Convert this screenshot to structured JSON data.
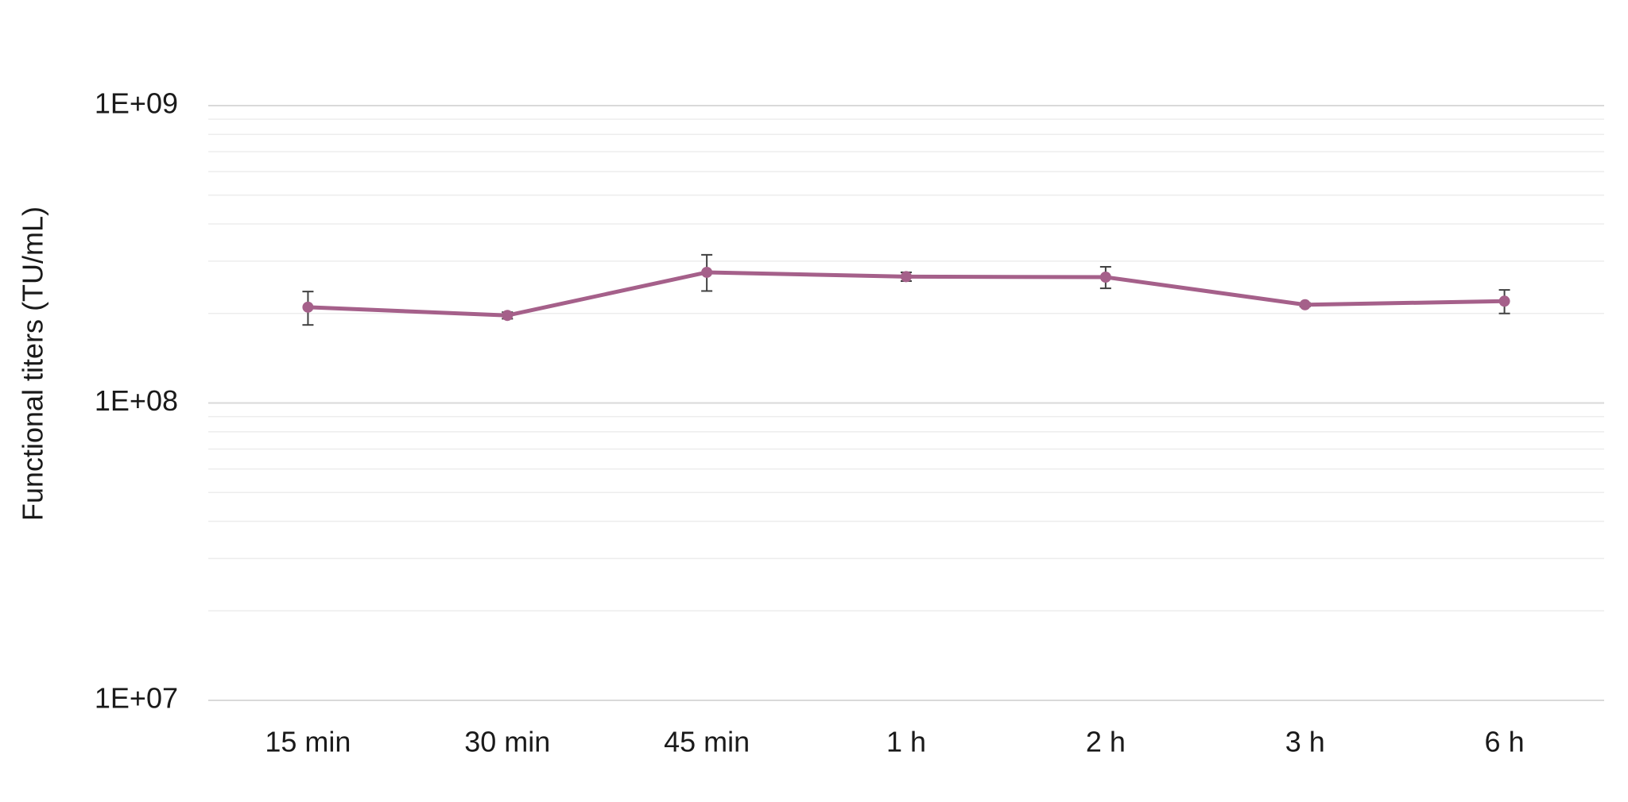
{
  "chart_data": {
    "type": "line",
    "title": "",
    "xlabel": "",
    "ylabel": "Functional titers (TU/mL)",
    "yscale": "log",
    "ylim": [
      10000000,
      1000000000
    ],
    "y_tick_values": [
      10000000,
      100000000,
      1000000000
    ],
    "y_tick_labels": [
      "1E+07",
      "1E+08",
      "1E+09"
    ],
    "grid": true,
    "legend": "none",
    "categories": [
      "15 min",
      "30 min",
      "45 min",
      "1 h",
      "2 h",
      "3 h",
      "6 h"
    ],
    "series": [
      {
        "values": [
          210000000,
          197000000,
          275000000,
          266000000,
          265000000,
          214000000,
          220000000
        ],
        "error_low": [
          183000000,
          192000000,
          238000000,
          257000000,
          243000000,
          211000000,
          200000000
        ],
        "error_high": [
          237000000,
          202000000,
          315000000,
          275000000,
          287000000,
          217000000,
          240000000
        ],
        "color": "#a5608a"
      }
    ]
  }
}
